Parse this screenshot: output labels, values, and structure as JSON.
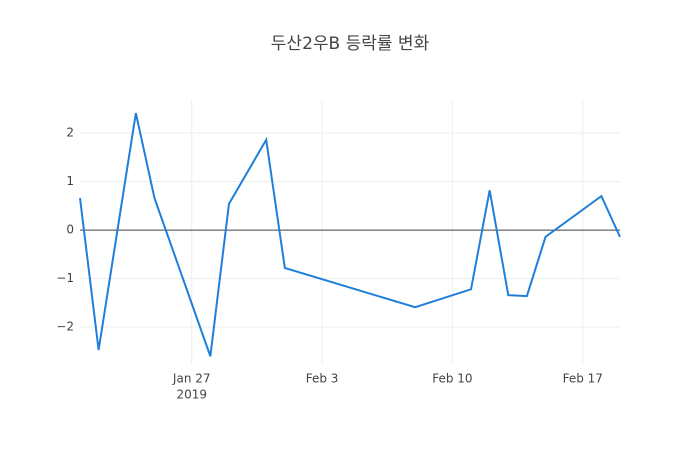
{
  "chart_data": {
    "type": "line",
    "title": "두산2우B 등락률 변화",
    "x": [
      "2019-01-21",
      "2019-01-22",
      "2019-01-24",
      "2019-01-25",
      "2019-01-28",
      "2019-01-29",
      "2019-01-31",
      "2019-02-01",
      "2019-02-08",
      "2019-02-11",
      "2019-02-12",
      "2019-02-13",
      "2019-02-14",
      "2019-02-15",
      "2019-02-18",
      "2019-02-19"
    ],
    "series": [
      {
        "color": "#1f7fd9",
        "values": [
          0.66,
          -2.47,
          2.41,
          0.66,
          -2.6,
          0.54,
          1.86,
          -0.78,
          -1.59,
          -1.22,
          0.82,
          -1.34,
          -1.36,
          -0.14,
          0.7,
          -0.14
        ]
      }
    ],
    "xlim": [
      "2019-01-21",
      "2019-02-19"
    ],
    "xticks": [
      {
        "value": "2019-01-27",
        "label": "Jan 27"
      },
      {
        "value": "2019-02-03",
        "label": "Feb 3"
      },
      {
        "value": "2019-02-10",
        "label": "Feb 10"
      },
      {
        "value": "2019-02-17",
        "label": "Feb 17"
      }
    ],
    "x_year_label": "2019",
    "ylim": [
      -2.78,
      2.68
    ],
    "yticks": [
      {
        "value": -2,
        "label": "−2"
      },
      {
        "value": -1,
        "label": "−1"
      },
      0,
      1,
      2
    ],
    "grid": true,
    "zeroline": true
  }
}
